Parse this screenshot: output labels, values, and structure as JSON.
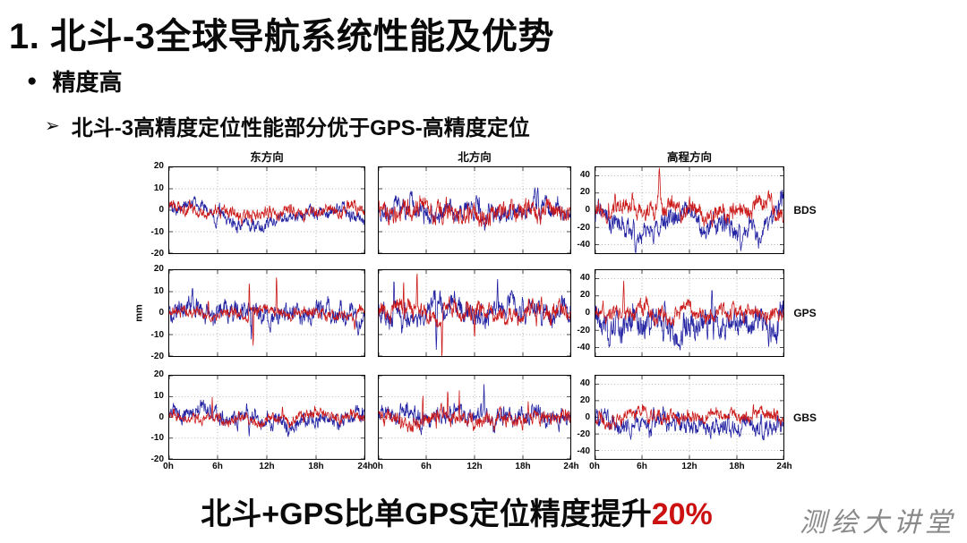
{
  "slide": {
    "title": "1. 北斗-3全球导航系统性能及优势",
    "bullet_icon": "●",
    "bullet": "精度高",
    "sub_bullet_icon": "➢",
    "sub_bullet": "北斗-3高精度定位性能部分优于GPS-高精度定位",
    "caption_prefix": "北斗+GPS比单GPS定位精度提升",
    "caption_highlight": "20%",
    "watermark": "测绘大讲堂",
    "colors": {
      "text": "#0a0a0a",
      "caption_highlight": "#cc1111",
      "watermark": "#8a8a8a"
    }
  },
  "chart_data": {
    "type": "line",
    "description": "3x3 grid of 24-hour positioning residual time series; columns are East/North/Up components, rows are BDS, GPS, GBS solutions; blue and red noisy traces around 0 mm",
    "columns": [
      {
        "title": "东方向",
        "ylim": [
          -20,
          20
        ],
        "yticks": [
          20,
          10,
          0,
          -10,
          -20
        ],
        "yticks_visible": true
      },
      {
        "title": "北方向",
        "ylim": [
          -20,
          20
        ],
        "yticks": [
          20,
          10,
          0,
          -10,
          -20
        ],
        "yticks_visible": false
      },
      {
        "title": "高程方向",
        "ylim": [
          -50,
          50
        ],
        "yticks": [
          40,
          20,
          0,
          -20,
          -40
        ],
        "yticks_visible": true
      }
    ],
    "row_labels": [
      "BDS",
      "GPS",
      "GBS"
    ],
    "x_ticks": [
      "0h",
      "6h",
      "12h",
      "18h",
      "24h"
    ],
    "x_range_hours": [
      0,
      24
    ],
    "ylabel": "mm",
    "grid": "dotted",
    "series_colors": {
      "blue": "#2323a3",
      "red": "#cc1a1a"
    },
    "panels": [
      [
        {
          "blue": {
            "seed": 101,
            "amp": 2.0,
            "bias": [
              1.5,
              2.5,
              -1.5,
              -5,
              -6,
              -4.5,
              -1,
              -0.5,
              -3
            ],
            "spikes": [
              [
                0.24,
                -6,
                0.01
              ]
            ]
          },
          "red": {
            "seed": 102,
            "amp": 2.0,
            "bias": [
              0
            ],
            "spikes": []
          }
        },
        {
          "blue": {
            "seed": 103,
            "amp": 3.0,
            "bias": [
              0
            ],
            "spikes": [
              [
                0.17,
                7,
                0.02
              ],
              [
                0.81,
                14,
                0.018
              ],
              [
                0.83,
                12,
                0.01
              ]
            ]
          },
          "red": {
            "seed": 104,
            "amp": 3.2,
            "bias": [
              0
            ],
            "spikes": []
          }
        },
        {
          "blue": {
            "seed": 105,
            "amp": 8,
            "bias": [
              -6,
              -14,
              -28,
              -12,
              -12,
              -15,
              -22,
              -28,
              4
            ],
            "spikes": [
              [
                0.215,
                -20,
                0.01
              ],
              [
                0.78,
                -16,
                0.012
              ]
            ]
          },
          "red": {
            "seed": 106,
            "amp": 7,
            "bias": [
              0
            ],
            "spikes": [
              [
                0.34,
                40,
                0.008
              ],
              [
                0.07,
                18,
                0.006
              ]
            ]
          }
        }
      ],
      [
        {
          "blue": {
            "seed": 107,
            "amp": 3.2,
            "bias": [
              0
            ],
            "spikes": [
              [
                0.3,
                -9,
                0.006
              ],
              [
                0.42,
                -13,
                0.005
              ],
              [
                0.12,
                8,
                0.006
              ]
            ]
          },
          "red": {
            "seed": 108,
            "amp": 1.7,
            "bias": [
              0
            ],
            "spikes": [
              [
                0.41,
                19,
                0.004
              ],
              [
                0.43,
                -17,
                0.004
              ],
              [
                0.55,
                18,
                0.004
              ],
              [
                0.2,
                9,
                0.004
              ],
              [
                0.95,
                -5,
                0.005
              ]
            ]
          }
        },
        {
          "blue": {
            "seed": 109,
            "amp": 3.6,
            "bias": [
              0
            ],
            "spikes": [
              [
                0.08,
                19,
                0.005
              ],
              [
                0.3,
                -22,
                0.005
              ],
              [
                0.62,
                15,
                0.005
              ],
              [
                0.75,
                12,
                0.005
              ]
            ]
          },
          "red": {
            "seed": 110,
            "amp": 2.8,
            "bias": [
              0
            ],
            "spikes": [
              [
                0.13,
                18,
                0.004
              ],
              [
                0.2,
                16,
                0.004
              ],
              [
                0.33,
                -24,
                0.004
              ],
              [
                0.5,
                -10,
                0.004
              ]
            ]
          }
        },
        {
          "blue": {
            "seed": 111,
            "amp": 11,
            "bias": [
              -6,
              -10,
              -14,
              -10,
              -16,
              -8,
              -12,
              -10,
              -6
            ],
            "spikes": [
              [
                0.62,
                40,
                0.008
              ],
              [
                0.2,
                20,
                0.006
              ],
              [
                0.36,
                -30,
                0.006
              ]
            ]
          },
          "red": {
            "seed": 112,
            "amp": 6,
            "bias": [
              0
            ],
            "spikes": [
              [
                0.15,
                35,
                0.005
              ],
              [
                0.04,
                18,
                0.005
              ]
            ]
          }
        }
      ],
      [
        {
          "blue": {
            "seed": 113,
            "amp": 2.6,
            "bias": [
              1,
              4,
              2,
              0,
              -2,
              -2,
              -1,
              0,
              2
            ],
            "spikes": [
              [
                0.41,
                -11,
                0.006
              ],
              [
                0.35,
                -8,
                0.006
              ],
              [
                0.95,
                -6,
                0.006
              ]
            ]
          },
          "red": {
            "seed": 114,
            "amp": 1.8,
            "bias": [
              0
            ],
            "spikes": [
              [
                0.22,
                8,
                0.004
              ],
              [
                0.58,
                5,
                0.004
              ]
            ]
          }
        },
        {
          "blue": {
            "seed": 115,
            "amp": 3.0,
            "bias": [
              0
            ],
            "spikes": [
              [
                0.55,
                12,
                0.005
              ],
              [
                0.22,
                -8,
                0.005
              ]
            ]
          },
          "red": {
            "seed": 116,
            "amp": 2.4,
            "bias": [
              0
            ],
            "spikes": [
              [
                0.23,
                17,
                0.004
              ],
              [
                0.36,
                16,
                0.004
              ],
              [
                0.42,
                15,
                0.004
              ],
              [
                0.3,
                -10,
                0.004
              ],
              [
                0.78,
                9,
                0.004
              ]
            ]
          }
        },
        {
          "blue": {
            "seed": 117,
            "amp": 7.5,
            "bias": [
              -4,
              -8,
              -5,
              -10,
              -8,
              -11,
              -8,
              -6,
              -3
            ],
            "spikes": [
              [
                0.31,
                30,
                0.007
              ],
              [
                0.88,
                14,
                0.006
              ]
            ]
          },
          "red": {
            "seed": 118,
            "amp": 5,
            "bias": [
              0
            ],
            "spikes": [
              [
                0.02,
                18,
                0.005
              ],
              [
                0.84,
                15,
                0.005
              ]
            ]
          }
        }
      ]
    ]
  }
}
